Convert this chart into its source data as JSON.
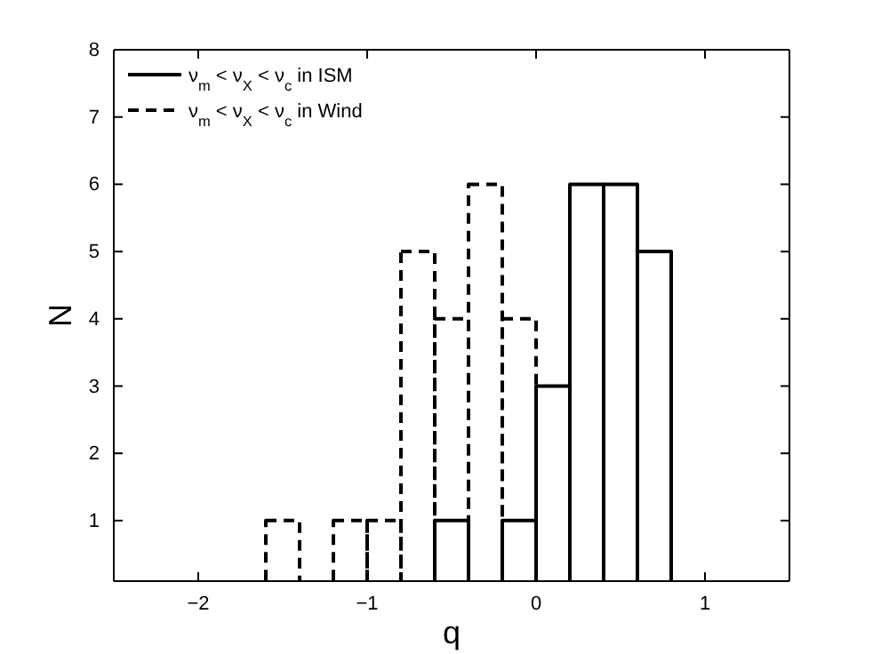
{
  "chart_data": {
    "type": "histogram",
    "xlabel": "q",
    "ylabel": "N",
    "bins": [
      -1.6,
      -1.4,
      -1.2,
      -1.0,
      -0.8,
      -0.6,
      -0.4,
      -0.2,
      0,
      0.2,
      0.4,
      0.6,
      0.8
    ],
    "series": [
      {
        "name": "ν$_{m}$ < ν$_{X}$ < ν$_{c}$ in ISM",
        "color": "#000000",
        "line_style": "solid",
        "values": [
          null,
          null,
          null,
          null,
          null,
          1,
          null,
          1,
          3,
          6,
          6,
          5
        ]
      },
      {
        "name": "ν$_{m}$ < ν$_{X}$ < ν$_{c}$ in Wind",
        "color": "#000000",
        "line_style": "dashed",
        "values": [
          1,
          null,
          1,
          1,
          5,
          4,
          6,
          4,
          null,
          null,
          null,
          null
        ]
      }
    ],
    "xlim": [
      -2.5,
      1.5
    ],
    "xticks": [
      {
        "value": -2,
        "label": "−2"
      },
      {
        "value": -1,
        "label": "−1"
      },
      0,
      1
    ],
    "ylim": [
      0.1,
      8
    ],
    "yticks": [
      1,
      2,
      3,
      4,
      5,
      6,
      7,
      8
    ],
    "legend": "top left"
  }
}
